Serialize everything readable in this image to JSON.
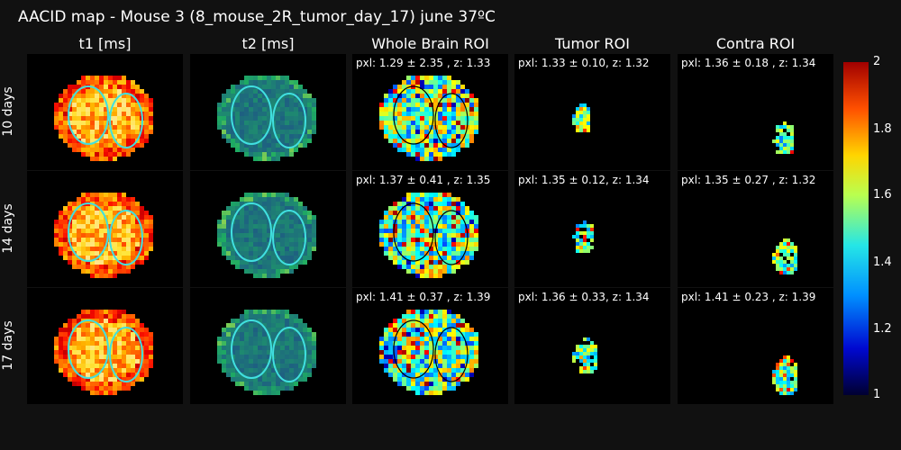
{
  "title": "AACID map - Mouse 3 (8_mouse_2R_tumor_day_17) june 37ºC",
  "columns": [
    "t1 [ms]",
    "t2 [ms]",
    "Whole Brain ROI",
    "Tumor ROI",
    "Contra ROI"
  ],
  "rows": [
    {
      "label": "10 days",
      "stats": {
        "whole": "pxl: 1.29 ± 2.35 , z: 1.33",
        "tumor": "pxl: 1.33 ± 0.10, z: 1.32",
        "contra": "pxl: 1.36 ± 0.18 , z: 1.34"
      }
    },
    {
      "label": "14 days",
      "stats": {
        "whole": "pxl: 1.37 ± 0.41 , z: 1.35",
        "tumor": "pxl: 1.35 ± 0.12, z: 1.34",
        "contra": "pxl: 1.35 ± 0.27 , z: 1.32"
      }
    },
    {
      "label": "17 days",
      "stats": {
        "whole": "pxl: 1.41 ± 0.37 , z: 1.39",
        "tumor": "pxl: 1.36 ± 0.33, z: 1.34",
        "contra": "pxl: 1.41 ± 0.23 , z: 1.39"
      }
    }
  ],
  "colorbar": {
    "ticks": [
      "2",
      "1.8",
      "1.6",
      "1.4",
      "1.2",
      "1"
    ],
    "min": 1,
    "max": 2,
    "colormap": "jet"
  },
  "colors": {
    "background": "#111111",
    "panel": "#000000",
    "roi_outline": "#40e0e0"
  }
}
